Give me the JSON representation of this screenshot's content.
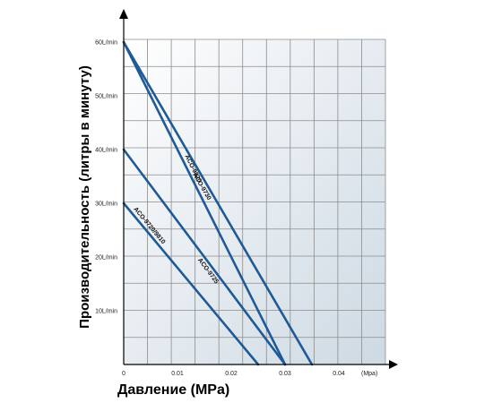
{
  "chart_data": {
    "type": "line",
    "title": "",
    "xlabel": "Давление (MPa)",
    "ylabel": "Производительность (литры в минуту)",
    "x_unit_label": "(Mpa)",
    "xlim": [
      0,
      0.05
    ],
    "ylim": [
      0,
      65
    ],
    "x_ticks": [
      {
        "value": 0,
        "label": "0"
      },
      {
        "value": 0.01,
        "label": "0.01"
      },
      {
        "value": 0.02,
        "label": "0.02"
      },
      {
        "value": 0.03,
        "label": "0.03"
      },
      {
        "value": 0.04,
        "label": "0.04"
      }
    ],
    "y_ticks": [
      {
        "value": 10,
        "label": "10L/min"
      },
      {
        "value": 20,
        "label": "20L/min"
      },
      {
        "value": 30,
        "label": "30L/min"
      },
      {
        "value": 40,
        "label": "40L/min"
      },
      {
        "value": 50,
        "label": "50L/min"
      },
      {
        "value": 60,
        "label": "60L/min"
      }
    ],
    "grid": true,
    "line_color": "#1f5a96",
    "series": [
      {
        "name": "ACO-9730",
        "points": [
          [
            0,
            60
          ],
          [
            0.035,
            0
          ]
        ]
      },
      {
        "name": "ACO-9820",
        "points": [
          [
            0,
            60
          ],
          [
            0.03,
            0
          ]
        ]
      },
      {
        "name": "ACO-9725",
        "points": [
          [
            0,
            40
          ],
          [
            0.03,
            0
          ]
        ]
      },
      {
        "name": "ACO-9720/9810",
        "points": [
          [
            0,
            30
          ],
          [
            0.025,
            0
          ]
        ]
      }
    ]
  }
}
